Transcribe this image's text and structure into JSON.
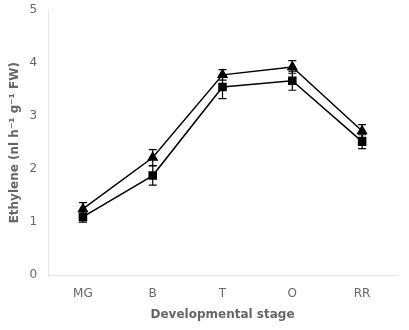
{
  "chart_data": {
    "type": "line",
    "categories": [
      "MG",
      "B",
      "T",
      "O",
      "RR"
    ],
    "series": [
      {
        "color": "#000000",
        "marker": "triangle",
        "values": [
          1.25,
          2.22,
          3.78,
          3.93,
          2.72
        ],
        "errors": [
          0.12,
          0.15,
          0.1,
          0.12,
          0.12
        ]
      },
      {
        "color": "#000000",
        "marker": "square",
        "values": [
          1.1,
          1.88,
          3.55,
          3.67,
          2.52
        ],
        "errors": [
          0.1,
          0.18,
          0.22,
          0.18,
          0.13
        ]
      }
    ],
    "xlabel": "Developmental stage",
    "ylabel": "Ethylene (nl h⁻¹ g⁻¹ FW)",
    "ylim": [
      0,
      5
    ],
    "yticks": [
      0,
      1,
      2,
      3,
      4,
      5
    ],
    "grid": false
  }
}
